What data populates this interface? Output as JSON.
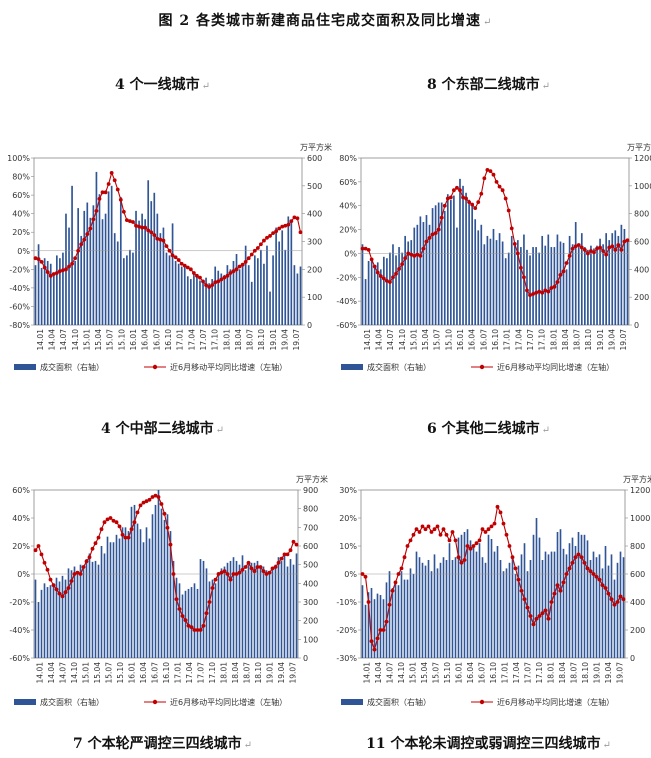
{
  "figure_title": "图 2   各类城市新建商品住宅成交面积及同比增速",
  "para_mark": "↵",
  "panels": [
    {
      "title": "4 个一线城市"
    },
    {
      "title": "8 个东部二线城市"
    },
    {
      "title": "4 个中部二线城市"
    },
    {
      "title": "6 个其他二线城市"
    },
    {
      "title": "7 个本轮严调控三四线城市"
    },
    {
      "title": "11 个本轮未调控或弱调控三四线城市"
    }
  ],
  "chart_data": [
    {
      "type": "bar",
      "title": "4 个一线城市",
      "y2label": "万平方米",
      "x_ticks": [
        "14.01",
        "14.04",
        "14.07",
        "14.10",
        "15.01",
        "15.04",
        "15.07",
        "15.10",
        "16.01",
        "16.04",
        "16.07",
        "16.10",
        "17.01",
        "17.04",
        "17.07",
        "17.10",
        "18.01",
        "18.04",
        "18.07",
        "18.10",
        "19.01",
        "19.04",
        "19.07"
      ],
      "ylim_left": [
        -0.8,
        1.0
      ],
      "ytick_step_left": 0.2,
      "ylim_right": [
        0,
        600
      ],
      "ytick_step_right": 100,
      "series": [
        {
          "name": "成交面积（右轴）",
          "axis": "right",
          "color": "#2F5597",
          "values": [
            215,
            290,
            205,
            240,
            230,
            220,
            185,
            250,
            240,
            260,
            400,
            350,
            500,
            230,
            420,
            320,
            410,
            440,
            385,
            430,
            550,
            470,
            380,
            400,
            480,
            500,
            330,
            300,
            460,
            240,
            250,
            270,
            260,
            410,
            375,
            400,
            380,
            520,
            445,
            475,
            400,
            330,
            350,
            260,
            250,
            365,
            230,
            220,
            210,
            210,
            175,
            165,
            190,
            180,
            160,
            160,
            170,
            150,
            165,
            210,
            195,
            185,
            180,
            215,
            200,
            230,
            255,
            200,
            210,
            285,
            215,
            155,
            250,
            240,
            270,
            220,
            285,
            120,
            250,
            350,
            300,
            340,
            270,
            390,
            375,
            215,
            185,
            210
          ]
        },
        {
          "name": "近6月移动平均同比增速（左轴）",
          "axis": "left",
          "color": "#C00000",
          "values": [
            -0.08,
            -0.09,
            -0.12,
            -0.18,
            -0.23,
            -0.27,
            -0.25,
            -0.24,
            -0.22,
            -0.21,
            -0.2,
            -0.17,
            -0.14,
            -0.08,
            0.0,
            0.07,
            0.12,
            0.18,
            0.24,
            0.34,
            0.43,
            0.56,
            0.63,
            0.63,
            0.72,
            0.84,
            0.76,
            0.66,
            0.55,
            0.42,
            0.33,
            0.32,
            0.31,
            0.27,
            0.26,
            0.25,
            0.25,
            0.22,
            0.2,
            0.17,
            0.13,
            0.12,
            0.11,
            0.05,
            0.0,
            -0.05,
            -0.07,
            -0.1,
            -0.14,
            -0.16,
            -0.18,
            -0.2,
            -0.24,
            -0.27,
            -0.29,
            -0.33,
            -0.37,
            -0.39,
            -0.37,
            -0.34,
            -0.33,
            -0.31,
            -0.29,
            -0.27,
            -0.24,
            -0.22,
            -0.2,
            -0.17,
            -0.15,
            -0.12,
            -0.08,
            -0.04,
            0.0,
            0.03,
            0.07,
            0.11,
            0.14,
            0.16,
            0.19,
            0.21,
            0.24,
            0.26,
            0.27,
            0.28,
            0.32,
            0.36,
            0.35,
            0.2
          ]
        }
      ]
    },
    {
      "type": "bar",
      "title": "8 个东部二线城市",
      "y2label": "万平方米",
      "x_ticks": [
        "14.01",
        "14.04",
        "14.07",
        "14.10",
        "15.01",
        "15.04",
        "15.07",
        "15.10",
        "16.01",
        "16.04",
        "16.07",
        "16.10",
        "17.01",
        "17.04",
        "17.07",
        "17.10",
        "18.01",
        "18.04",
        "18.07",
        "18.10",
        "19.01",
        "19.04",
        "19.07"
      ],
      "ylim_left": [
        -0.6,
        0.8
      ],
      "ytick_step_left": 0.2,
      "ylim_right": [
        0,
        1200
      ],
      "ytick_step_right": 200,
      "series": [
        {
          "name": "成交面积（右轴）",
          "axis": "right",
          "color": "#2F5597",
          "values": [
            580,
            330,
            460,
            480,
            420,
            450,
            400,
            490,
            480,
            520,
            580,
            500,
            560,
            520,
            640,
            600,
            610,
            700,
            720,
            780,
            740,
            790,
            720,
            840,
            860,
            880,
            880,
            820,
            940,
            900,
            930,
            700,
            1050,
            1000,
            950,
            900,
            870,
            760,
            680,
            720,
            580,
            640,
            620,
            690,
            610,
            660,
            600,
            480,
            520,
            640,
            570,
            610,
            560,
            650,
            540,
            500,
            560,
            560,
            520,
            640,
            570,
            650,
            560,
            560,
            650,
            600,
            590,
            400,
            640,
            580,
            740,
            560,
            660,
            560,
            540,
            570,
            550,
            570,
            620,
            580,
            660,
            610,
            660,
            680,
            640,
            720,
            690,
            600
          ]
        },
        {
          "name": "近6月移动平均同比增速（左轴）",
          "axis": "left",
          "color": "#C00000",
          "values": [
            0.04,
            0.04,
            0.03,
            -0.05,
            -0.11,
            -0.16,
            -0.19,
            -0.21,
            -0.23,
            -0.24,
            -0.2,
            -0.17,
            -0.13,
            -0.09,
            -0.04,
            0.0,
            -0.01,
            -0.02,
            -0.01,
            -0.02,
            0.04,
            0.1,
            0.13,
            0.16,
            0.17,
            0.2,
            0.3,
            0.4,
            0.46,
            0.47,
            0.53,
            0.55,
            0.53,
            0.47,
            0.46,
            0.43,
            0.41,
            0.38,
            0.43,
            0.5,
            0.63,
            0.7,
            0.69,
            0.66,
            0.6,
            0.56,
            0.53,
            0.46,
            0.36,
            0.21,
            0.08,
            0.0,
            -0.12,
            -0.2,
            -0.31,
            -0.35,
            -0.34,
            -0.33,
            -0.32,
            -0.33,
            -0.31,
            -0.32,
            -0.29,
            -0.28,
            -0.24,
            -0.18,
            -0.15,
            -0.08,
            -0.02,
            0.04,
            0.06,
            0.07,
            0.05,
            0.03,
            0.0,
            0.02,
            0.01,
            0.04,
            0.05,
            0.02,
            -0.01,
            0.05,
            0.06,
            0.03,
            0.07,
            0.03,
            0.1,
            0.11
          ]
        }
      ]
    },
    {
      "type": "bar",
      "title": "4 个中部二线城市",
      "y2label": "万平方米",
      "x_ticks": [
        "14.01",
        "14.04",
        "14.07",
        "14.10",
        "15.01",
        "15.04",
        "15.07",
        "15.10",
        "16.01",
        "16.04",
        "16.07",
        "16.10",
        "17.01",
        "17.04",
        "17.07",
        "17.10",
        "18.01",
        "18.04",
        "18.07",
        "18.10",
        "19.01",
        "19.04",
        "19.07"
      ],
      "ylim_left": [
        -0.6,
        0.6
      ],
      "ytick_step_left": 0.2,
      "ylim_right": [
        0,
        900
      ],
      "ytick_step_right": 100,
      "series": [
        {
          "name": "成交面积（右轴）",
          "axis": "right",
          "color": "#2F5597",
          "values": [
            420,
            300,
            365,
            400,
            380,
            390,
            400,
            430,
            410,
            440,
            420,
            480,
            470,
            490,
            450,
            500,
            495,
            530,
            560,
            515,
            520,
            500,
            600,
            560,
            650,
            620,
            620,
            660,
            640,
            700,
            700,
            680,
            810,
            820,
            720,
            690,
            620,
            700,
            640,
            770,
            820,
            900,
            800,
            740,
            770,
            680,
            520,
            430,
            400,
            340,
            360,
            370,
            380,
            400,
            370,
            530,
            520,
            480,
            410,
            420,
            400,
            460,
            480,
            490,
            510,
            520,
            540,
            520,
            500,
            550,
            470,
            500,
            510,
            510,
            520,
            480,
            490,
            470,
            450,
            480,
            500,
            540,
            520,
            560,
            490,
            530,
            500,
            560
          ]
        },
        {
          "name": "近6月移动平均同比增速（左轴）",
          "axis": "left",
          "color": "#C00000",
          "values": [
            0.17,
            0.2,
            0.14,
            0.08,
            0.03,
            -0.04,
            -0.08,
            -0.11,
            -0.14,
            -0.16,
            -0.13,
            -0.1,
            -0.05,
            0.0,
            0.01,
            0.0,
            0.05,
            0.09,
            0.12,
            0.18,
            0.22,
            0.26,
            0.32,
            0.37,
            0.39,
            0.4,
            0.38,
            0.37,
            0.34,
            0.28,
            0.26,
            0.26,
            0.32,
            0.37,
            0.44,
            0.49,
            0.51,
            0.52,
            0.53,
            0.55,
            0.56,
            0.55,
            0.5,
            0.43,
            0.33,
            0.21,
            0.0,
            -0.18,
            -0.25,
            -0.3,
            -0.33,
            -0.37,
            -0.38,
            -0.4,
            -0.4,
            -0.4,
            -0.37,
            -0.28,
            -0.2,
            -0.1,
            -0.04,
            0.0,
            0.01,
            0.02,
            0.0,
            -0.04,
            0.0,
            0.0,
            0.01,
            0.03,
            0.05,
            0.08,
            0.04,
            0.02,
            0.05,
            0.05,
            0.02,
            0.0,
            0.01,
            0.04,
            0.05,
            0.08,
            0.11,
            0.14,
            0.14,
            0.17,
            0.23,
            0.21
          ]
        }
      ]
    },
    {
      "type": "bar",
      "title": "6 个其他二线城市",
      "y2label": "万平方米",
      "x_ticks": [
        "14.01",
        "14.04",
        "14.07",
        "14.10",
        "15.01",
        "15.04",
        "15.07",
        "15.10",
        "16.01",
        "16.04",
        "16.07",
        "16.10",
        "17.01",
        "17.04",
        "17.07",
        "17.10",
        "18.01",
        "18.04",
        "18.07",
        "18.10",
        "19.01",
        "19.04",
        "19.07"
      ],
      "ylim_left": [
        -0.3,
        0.3
      ],
      "ytick_step_left": 0.1,
      "ylim_right": [
        0,
        1200
      ],
      "ytick_step_right": 200,
      "series": [
        {
          "name": "成交面积（右轴）",
          "axis": "right",
          "color": "#2F5597",
          "values": [
            520,
            380,
            470,
            500,
            420,
            460,
            450,
            420,
            540,
            620,
            500,
            540,
            520,
            620,
            560,
            560,
            640,
            600,
            760,
            720,
            680,
            660,
            700,
            620,
            740,
            640,
            680,
            720,
            700,
            820,
            700,
            720,
            860,
            880,
            900,
            920,
            840,
            800,
            760,
            820,
            720,
            680,
            880,
            850,
            760,
            800,
            700,
            620,
            640,
            680,
            720,
            600,
            660,
            740,
            820,
            620,
            700,
            880,
            1000,
            860,
            700,
            760,
            740,
            760,
            760,
            900,
            920,
            780,
            740,
            820,
            860,
            800,
            900,
            880,
            880,
            840,
            700,
            760,
            720,
            740,
            640,
            800,
            660,
            740,
            560,
            680,
            760,
            720
          ]
        },
        {
          "name": "近6月移动平均同比增速（左轴）",
          "axis": "left",
          "color": "#C00000",
          "values": [
            0.0,
            -0.01,
            -0.1,
            -0.24,
            -0.27,
            -0.23,
            -0.2,
            -0.2,
            -0.17,
            -0.11,
            -0.06,
            -0.03,
            0.0,
            0.02,
            0.06,
            0.1,
            0.12,
            0.14,
            0.16,
            0.15,
            0.17,
            0.16,
            0.17,
            0.15,
            0.16,
            0.17,
            0.14,
            0.16,
            0.14,
            0.12,
            0.15,
            0.12,
            0.06,
            0.04,
            0.05,
            0.1,
            0.09,
            0.1,
            0.11,
            0.12,
            0.16,
            0.15,
            0.16,
            0.17,
            0.18,
            0.24,
            0.22,
            0.18,
            0.14,
            0.1,
            0.06,
            0.02,
            -0.02,
            -0.06,
            -0.09,
            -0.12,
            -0.15,
            -0.18,
            -0.16,
            -0.15,
            -0.14,
            -0.13,
            -0.16,
            -0.1,
            -0.07,
            -0.04,
            -0.06,
            -0.03,
            0.0,
            0.02,
            0.04,
            0.06,
            0.07,
            0.06,
            0.04,
            0.02,
            0.01,
            0.0,
            -0.01,
            -0.02,
            -0.04,
            -0.05,
            -0.07,
            -0.09,
            -0.11,
            -0.1,
            -0.08,
            -0.09
          ]
        }
      ]
    }
  ],
  "legend": {
    "bar_label": "成交面积（右轴）",
    "line_label": "近6月移动平均同比增速（左轴）"
  }
}
